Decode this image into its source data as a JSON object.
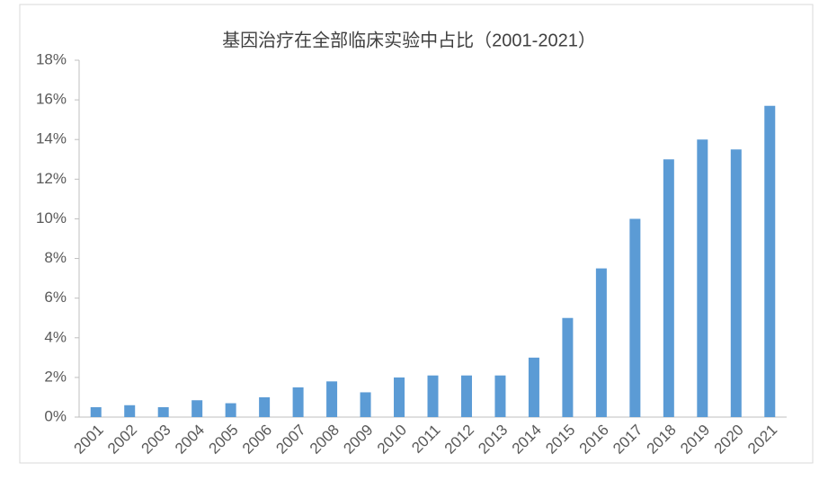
{
  "chart_data": {
    "type": "bar",
    "title": "基因治疗在全部临床实验中占比（2001-2021）",
    "categories": [
      "2001",
      "2002",
      "2003",
      "2004",
      "2005",
      "2006",
      "2007",
      "2008",
      "2009",
      "2010",
      "2011",
      "2012",
      "2013",
      "2014",
      "2015",
      "2016",
      "2017",
      "2018",
      "2019",
      "2020",
      "2021"
    ],
    "values": [
      0.5,
      0.6,
      0.5,
      0.85,
      0.7,
      1.0,
      1.5,
      1.8,
      1.25,
      2.0,
      2.1,
      2.1,
      2.1,
      3.0,
      5.0,
      7.5,
      10.0,
      13.0,
      14.0,
      13.5,
      15.7
    ],
    "color": "#5b9bd5",
    "ylim": [
      0,
      18
    ],
    "yticks": [
      {
        "value": 0,
        "label": "0%"
      },
      {
        "value": 2,
        "label": "2%"
      },
      {
        "value": 4,
        "label": "4%"
      },
      {
        "value": 6,
        "label": "6%"
      },
      {
        "value": 8,
        "label": "8%"
      },
      {
        "value": 10,
        "label": "10%"
      },
      {
        "value": 12,
        "label": "12%"
      },
      {
        "value": 14,
        "label": "14%"
      },
      {
        "value": 16,
        "label": "16%"
      },
      {
        "value": 18,
        "label": "18%"
      }
    ],
    "grid": false
  }
}
